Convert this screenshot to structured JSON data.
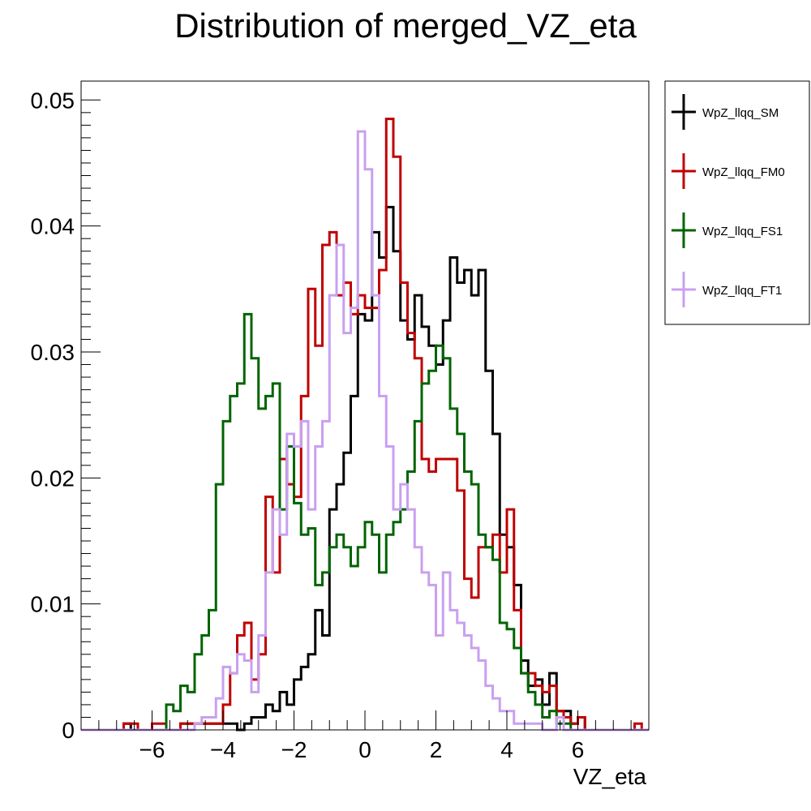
{
  "chart_data": {
    "type": "step-histogram",
    "title": "Distribution of merged_VZ_eta",
    "xlabel": "VZ_eta",
    "ylabel": "",
    "xlim": [
      -8,
      8
    ],
    "ylim": [
      0,
      0.0515
    ],
    "bin_width": 0.2,
    "x_ticks": [
      -6,
      -4,
      -2,
      0,
      2,
      4,
      6
    ],
    "x_tick_labels": [
      "−6",
      "−4",
      "−2",
      "0",
      "2",
      "4",
      "6"
    ],
    "y_ticks": [
      0,
      0.01,
      0.02,
      0.03,
      0.04,
      0.05
    ],
    "y_tick_labels": [
      "0",
      "0.01",
      "0.02",
      "0.03",
      "0.04",
      "0.05"
    ],
    "grid": false,
    "legend_position": "top-right-outside",
    "series": [
      {
        "name": "WpZ_llqq_SM",
        "color": "#000000",
        "x_start": -8,
        "values": [
          0,
          0,
          0,
          0,
          0,
          0,
          0.0005,
          0,
          0,
          0,
          0,
          0,
          0,
          0,
          0.0005,
          0.0005,
          0.0005,
          0.0005,
          0.0005,
          0.0005,
          0.0005,
          0.0005,
          0,
          0.0005,
          0.001,
          0.001,
          0.002,
          0.0015,
          0.003,
          0.002,
          0.004,
          0.005,
          0.006,
          0.0095,
          0.0075,
          0.0175,
          0.0195,
          0.022,
          0.0265,
          0.033,
          0.0325,
          0.0395,
          0.0375,
          0.0415,
          0.038,
          0.0325,
          0.031,
          0.0345,
          0.032,
          0.0305,
          0.029,
          0.0325,
          0.0375,
          0.0355,
          0.0365,
          0.0345,
          0.0365,
          0.0285,
          0.0235,
          0.0155,
          0.0145,
          0.0115,
          0.0055,
          0.0035,
          0.004,
          0.002,
          0.0045,
          0.0015,
          0.0015,
          0.0005,
          0.001,
          0,
          0,
          0,
          0,
          0,
          0,
          0,
          0,
          0
        ]
      },
      {
        "name": "WpZ_llqq_FM0",
        "color": "#c00000",
        "x_start": -8,
        "values": [
          0,
          0,
          0,
          0,
          0,
          0,
          0.0005,
          0.0005,
          0,
          0,
          0.0005,
          0.0005,
          0,
          0,
          0.0005,
          0.0005,
          0.0005,
          0.0005,
          0.0005,
          0.0005,
          0.002,
          0.0045,
          0.0075,
          0.0085,
          0.004,
          0.006,
          0.0185,
          0.0125,
          0.0215,
          0.0195,
          0.0185,
          0.0265,
          0.035,
          0.0305,
          0.0385,
          0.0395,
          0.0345,
          0.0355,
          0.033,
          0.0345,
          0.0335,
          0.0335,
          0.0365,
          0.0485,
          0.0455,
          0.0355,
          0.0315,
          0.0295,
          0.0215,
          0.0205,
          0.0215,
          0.0215,
          0.0215,
          0.019,
          0.012,
          0.0105,
          0.0145,
          0.0145,
          0.0155,
          0.0125,
          0.0175,
          0.0095,
          0.0045,
          0.0045,
          0.0035,
          0.003,
          0.0035,
          0.0015,
          0.001,
          0.0005,
          0.001,
          0,
          0,
          0,
          0,
          0,
          0,
          0,
          0.0005,
          0
        ]
      },
      {
        "name": "WpZ_llqq_FS1",
        "color": "#006400",
        "x_start": -8,
        "values": [
          0,
          0,
          0,
          0,
          0,
          0,
          0,
          0,
          0,
          0,
          0,
          0,
          0.002,
          0.0015,
          0.0035,
          0.003,
          0.006,
          0.0075,
          0.0095,
          0.0195,
          0.0245,
          0.0265,
          0.0275,
          0.033,
          0.0295,
          0.0255,
          0.0265,
          0.0275,
          0.0175,
          0.0225,
          0.018,
          0.0155,
          0.016,
          0.0115,
          0.0125,
          0.0145,
          0.0155,
          0.0145,
          0.013,
          0.0145,
          0.0165,
          0.0155,
          0.0125,
          0.0155,
          0.0165,
          0.0175,
          0.0205,
          0.0245,
          0.0275,
          0.0285,
          0.0305,
          0.0295,
          0.0255,
          0.0235,
          0.0205,
          0.0195,
          0.0155,
          0.0145,
          0.0135,
          0.0085,
          0.008,
          0.0065,
          0.0045,
          0.003,
          0.002,
          0.001,
          0.0015,
          0.0005,
          0.0005,
          0,
          0,
          0,
          0,
          0,
          0,
          0,
          0,
          0,
          0,
          0
        ]
      },
      {
        "name": "WpZ_llqq_FT1",
        "color": "#c9a0f0",
        "x_start": -8,
        "values": [
          0,
          0,
          0,
          0,
          0,
          0,
          0,
          0,
          0,
          0,
          0,
          0,
          0,
          0,
          0,
          0,
          0.0005,
          0.001,
          0.001,
          0.0025,
          0.005,
          0.0045,
          0.006,
          0.0055,
          0.003,
          0.0075,
          0.0125,
          0.0175,
          0.0155,
          0.0235,
          0.0225,
          0.0245,
          0.0175,
          0.0225,
          0.0245,
          0.0345,
          0.0385,
          0.0315,
          0.0335,
          0.0475,
          0.0445,
          0.0345,
          0.0265,
          0.0225,
          0.0175,
          0.0195,
          0.0175,
          0.0145,
          0.0125,
          0.0115,
          0.0075,
          0.0125,
          0.0095,
          0.0085,
          0.0075,
          0.0065,
          0.0055,
          0.0035,
          0.0025,
          0.0015,
          0.0015,
          0.0005,
          0.0005,
          0.0005,
          0.0005,
          0,
          0,
          0.001,
          0,
          0,
          0,
          0,
          0,
          0,
          0,
          0,
          0,
          0,
          0,
          0
        ]
      }
    ]
  }
}
